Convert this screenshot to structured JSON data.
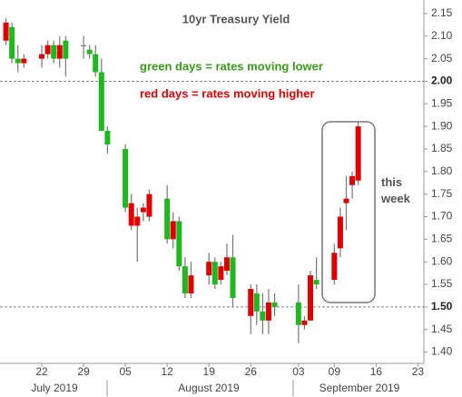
{
  "chart_data": {
    "type": "candlestick",
    "title": "10yr Treasury Yield",
    "annotations": [
      "green days = rates moving lower",
      "red days = rates moving higher",
      "this week"
    ],
    "up_color": "#e00000",
    "down_color": "#1fb81f",
    "flat_color": "#888888",
    "x": [
      "2019-07-16",
      "2019-07-17",
      "2019-07-18",
      "2019-07-19",
      "2019-07-22",
      "2019-07-23",
      "2019-07-24",
      "2019-07-25",
      "2019-07-26",
      "2019-07-29",
      "2019-07-30",
      "2019-07-31",
      "2019-08-01",
      "2019-08-02",
      "2019-08-05",
      "2019-08-06",
      "2019-08-07",
      "2019-08-08",
      "2019-08-09",
      "2019-08-12",
      "2019-08-13",
      "2019-08-14",
      "2019-08-15",
      "2019-08-16",
      "2019-08-19",
      "2019-08-20",
      "2019-08-21",
      "2019-08-22",
      "2019-08-23",
      "2019-08-26",
      "2019-08-27",
      "2019-08-28",
      "2019-08-29",
      "2019-08-30",
      "2019-09-03",
      "2019-09-04",
      "2019-09-05",
      "2019-09-06",
      "2019-09-09",
      "2019-09-10",
      "2019-09-11",
      "2019-09-12",
      "2019-09-13"
    ],
    "open": [
      2.09,
      2.12,
      2.05,
      2.04,
      2.05,
      2.06,
      2.08,
      2.05,
      2.09,
      2.08,
      2.07,
      2.06,
      2.02,
      1.89,
      1.85,
      1.68,
      1.68,
      1.71,
      1.7,
      1.74,
      1.65,
      1.69,
      1.59,
      1.53,
      1.57,
      1.6,
      1.56,
      1.58,
      1.61,
      1.48,
      1.53,
      1.49,
      1.47,
      1.51,
      1.51,
      1.46,
      1.47,
      1.56,
      1.56,
      1.63,
      1.73,
      1.77,
      1.78
    ],
    "high": [
      2.14,
      2.13,
      2.08,
      2.06,
      2.08,
      2.09,
      2.09,
      2.1,
      2.1,
      2.1,
      2.08,
      2.08,
      2.05,
      1.9,
      1.86,
      1.75,
      1.72,
      1.73,
      1.76,
      1.77,
      1.71,
      1.7,
      1.61,
      1.6,
      1.62,
      1.61,
      1.6,
      1.64,
      1.66,
      1.55,
      1.55,
      1.53,
      1.54,
      1.53,
      1.55,
      1.48,
      1.58,
      1.61,
      1.64,
      1.72,
      1.79,
      1.8,
      1.91
    ],
    "low": [
      2.08,
      2.04,
      2.02,
      2.03,
      2.03,
      2.05,
      2.04,
      2.03,
      2.01,
      2.05,
      2.05,
      2.01,
      1.89,
      1.84,
      1.71,
      1.67,
      1.6,
      1.69,
      1.69,
      1.64,
      1.63,
      1.58,
      1.52,
      1.52,
      1.55,
      1.54,
      1.55,
      1.57,
      1.5,
      1.44,
      1.46,
      1.44,
      1.44,
      1.48,
      1.42,
      1.45,
      1.47,
      1.54,
      1.55,
      1.61,
      1.67,
      1.74,
      1.77
    ],
    "close": [
      2.13,
      2.05,
      2.04,
      2.05,
      2.06,
      2.08,
      2.05,
      2.08,
      2.05,
      2.08,
      2.06,
      2.02,
      1.89,
      1.86,
      1.72,
      1.73,
      1.7,
      1.72,
      1.75,
      1.65,
      1.69,
      1.59,
      1.53,
      1.57,
      1.6,
      1.55,
      1.59,
      1.61,
      1.52,
      1.54,
      1.49,
      1.47,
      1.51,
      1.5,
      1.46,
      1.47,
      1.57,
      1.55,
      1.62,
      1.7,
      1.74,
      1.79,
      1.9
    ],
    "xlim": [
      "2019-07-15",
      "2019-09-24"
    ],
    "xticks": [
      {
        "value": "2019-07-22",
        "label": "22"
      },
      {
        "value": "2019-07-29",
        "label": "29"
      },
      {
        "value": "2019-08-05",
        "label": "05"
      },
      {
        "value": "2019-08-12",
        "label": "12"
      },
      {
        "value": "2019-08-19",
        "label": "19"
      },
      {
        "value": "2019-08-26",
        "label": "26"
      },
      {
        "value": "2019-09-03",
        "label": "03"
      },
      {
        "value": "2019-09-09",
        "label": "09"
      },
      {
        "value": "2019-09-16",
        "label": "16"
      },
      {
        "value": "2019-09-23",
        "label": "23"
      }
    ],
    "month_labels": [
      "July 2019",
      "August 2019",
      "September 2019"
    ],
    "ylim": [
      1.375,
      2.18
    ],
    "yticks": [
      2.15,
      {
        "value": 2.1,
        "label": "2.10"
      },
      2.05,
      {
        "value": 2.0,
        "label": "2.00"
      },
      1.95,
      {
        "value": 1.9,
        "label": "1.90"
      },
      1.85,
      {
        "value": 1.8,
        "label": "1.80"
      },
      1.75,
      {
        "value": 1.7,
        "label": "1.70"
      },
      1.65,
      {
        "value": 1.6,
        "label": "1.60"
      },
      1.55,
      {
        "value": 1.5,
        "label": "1.50"
      },
      1.45,
      {
        "value": 1.4,
        "label": "1.40"
      }
    ],
    "reference_lines": [
      2.0,
      1.5
    ]
  }
}
